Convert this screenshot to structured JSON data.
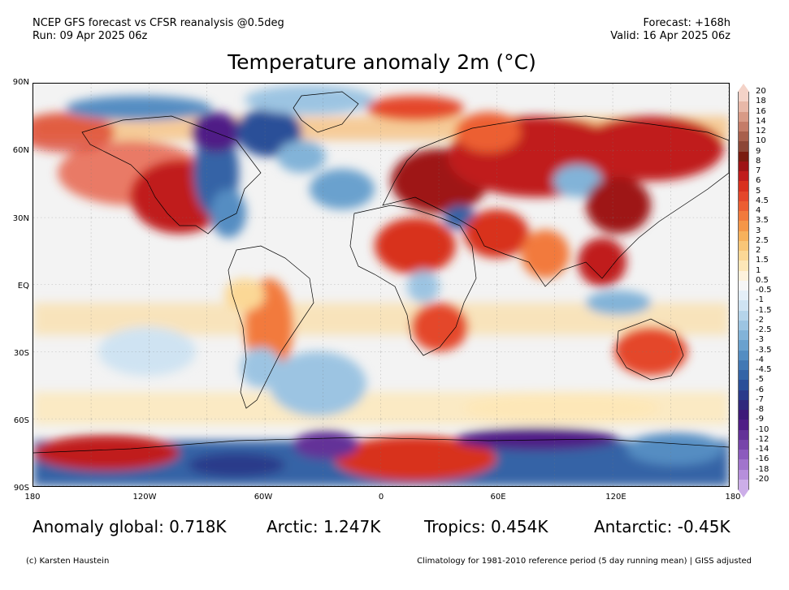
{
  "header": {
    "left_line1": "NCEP GFS forecast vs CFSR reanalysis @0.5deg",
    "left_line2": "Run: 09 Apr 2025 06z",
    "right_line1": "Forecast: +168h",
    "right_line2": "Valid: 16 Apr 2025 06z"
  },
  "title": "Temperature anomaly 2m (°C)",
  "axes": {
    "lat_labels": [
      "90N",
      "60N",
      "30N",
      "EQ",
      "30S",
      "60S",
      "90S"
    ],
    "lon_labels": [
      "180",
      "120W",
      "60W",
      "0",
      "60E",
      "120E",
      "180"
    ]
  },
  "colorbar": {
    "labels": [
      "20",
      "18",
      "16",
      "14",
      "12",
      "10",
      "9",
      "8",
      "7",
      "6",
      "5",
      "4.5",
      "4",
      "3.5",
      "3",
      "2.5",
      "2",
      "1.5",
      "1",
      "0.5",
      "-0.5",
      "-1",
      "-1.5",
      "-2",
      "-2.5",
      "-3",
      "-3.5",
      "-4",
      "-4.5",
      "-5",
      "-6",
      "-7",
      "-8",
      "-9",
      "-10",
      "-12",
      "-14",
      "-16",
      "-18",
      "-20"
    ],
    "colors": [
      "#f4d3c8",
      "#e8b8a8",
      "#d89a86",
      "#c47c68",
      "#a85f4c",
      "#8c4636",
      "#7a1c10",
      "#9e1416",
      "#c01c1c",
      "#d8301e",
      "#e4472a",
      "#ec5e32",
      "#f27a3c",
      "#f59648",
      "#f7b15c",
      "#f9c678",
      "#fbd896",
      "#fde7b8",
      "#fdf2dc",
      "#f6f6f6",
      "#e4eff8",
      "#cfe3f2",
      "#b5d4ea",
      "#9cc4e2",
      "#82b3d8",
      "#6aa1ce",
      "#548dc2",
      "#4178b4",
      "#3464a6",
      "#2a4f98",
      "#2a3b8a",
      "#30297c",
      "#3d1a78",
      "#4f1e86",
      "#633198",
      "#7745aa",
      "#8c5bbd",
      "#a174cc",
      "#b68fdb",
      "#ccaee8"
    ]
  },
  "stats": {
    "global": "Anomaly global: 0.718K",
    "arctic": "Arctic: 1.247K",
    "tropics": "Tropics: 0.454K",
    "antarctic": "Antarctic: -0.45K"
  },
  "footer": {
    "left": "(c) Karsten Haustein",
    "right": "Climatology for 1981-2010 reference period (5 day running mean) | GISS adjusted"
  }
}
